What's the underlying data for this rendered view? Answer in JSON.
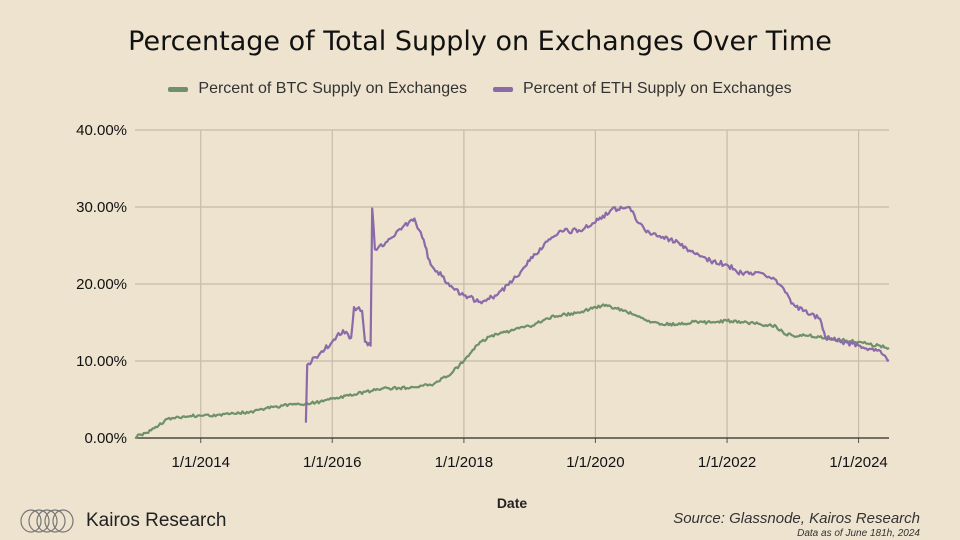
{
  "chart_data": {
    "type": "line",
    "title": "Percentage of Total Supply on Exchanges Over Time",
    "xlabel": "Date",
    "ylabel": "",
    "x_ticks": [
      "1/1/2014",
      "1/1/2016",
      "1/1/2018",
      "1/1/2020",
      "1/1/2022",
      "1/1/2024"
    ],
    "y_ticks": [
      "0.00%",
      "10.00%",
      "20.00%",
      "30.00%",
      "40.00%"
    ],
    "ylim": [
      0,
      40
    ],
    "xlim": [
      "2013-01-01",
      "2024-06-18"
    ],
    "grid": true,
    "legend_position": "top",
    "series": [
      {
        "name": "Percent of BTC Supply on Exchanges",
        "color": "#6e9167",
        "points": [
          [
            "2013-01-01",
            0.1
          ],
          [
            "2013-04-01",
            1.0
          ],
          [
            "2013-07-01",
            2.5
          ],
          [
            "2013-10-01",
            2.8
          ],
          [
            "2014-01-01",
            2.9
          ],
          [
            "2014-04-01",
            3.0
          ],
          [
            "2014-07-01",
            3.2
          ],
          [
            "2014-10-01",
            3.4
          ],
          [
            "2015-01-01",
            3.9
          ],
          [
            "2015-04-01",
            4.2
          ],
          [
            "2015-07-01",
            4.4
          ],
          [
            "2015-10-01",
            4.6
          ],
          [
            "2016-01-01",
            5.1
          ],
          [
            "2016-04-01",
            5.5
          ],
          [
            "2016-07-01",
            6.0
          ],
          [
            "2016-10-01",
            6.4
          ],
          [
            "2017-01-01",
            6.5
          ],
          [
            "2017-04-01",
            6.6
          ],
          [
            "2017-07-01",
            6.9
          ],
          [
            "2017-10-01",
            8.0
          ],
          [
            "2018-01-01",
            10.0
          ],
          [
            "2018-04-01",
            12.5
          ],
          [
            "2018-07-01",
            13.5
          ],
          [
            "2018-10-01",
            14.0
          ],
          [
            "2019-01-01",
            14.5
          ],
          [
            "2019-04-01",
            15.5
          ],
          [
            "2019-07-01",
            16.0
          ],
          [
            "2019-10-01",
            16.3
          ],
          [
            "2020-01-01",
            17.0
          ],
          [
            "2020-03-01",
            17.3
          ],
          [
            "2020-06-01",
            16.5
          ],
          [
            "2020-09-01",
            15.8
          ],
          [
            "2020-11-01",
            15.0
          ],
          [
            "2021-01-01",
            14.8
          ],
          [
            "2021-04-01",
            14.7
          ],
          [
            "2021-07-01",
            15.1
          ],
          [
            "2021-10-01",
            15.0
          ],
          [
            "2022-01-01",
            15.2
          ],
          [
            "2022-04-01",
            15.0
          ],
          [
            "2022-07-01",
            14.8
          ],
          [
            "2022-10-01",
            14.5
          ],
          [
            "2022-11-15",
            13.5
          ],
          [
            "2023-01-01",
            13.3
          ],
          [
            "2023-04-01",
            13.3
          ],
          [
            "2023-07-01",
            13.0
          ],
          [
            "2023-10-01",
            12.7
          ],
          [
            "2024-01-01",
            12.5
          ],
          [
            "2024-03-01",
            12.2
          ],
          [
            "2024-06-18",
            11.7
          ]
        ]
      },
      {
        "name": "Percent of ETH Supply on Exchanges",
        "color": "#8a6aa8",
        "points": [
          [
            "2015-08-08",
            2.0
          ],
          [
            "2015-08-15",
            9.5
          ],
          [
            "2015-10-01",
            10.5
          ],
          [
            "2016-01-01",
            12.5
          ],
          [
            "2016-03-01",
            14.0
          ],
          [
            "2016-04-15",
            13.0
          ],
          [
            "2016-05-01",
            17.0
          ],
          [
            "2016-06-15",
            16.5
          ],
          [
            "2016-07-01",
            12.5
          ],
          [
            "2016-08-01",
            12.0
          ],
          [
            "2016-08-10",
            29.8
          ],
          [
            "2016-08-25",
            24.5
          ],
          [
            "2016-11-01",
            25.5
          ],
          [
            "2017-01-01",
            27.0
          ],
          [
            "2017-03-01",
            28.0
          ],
          [
            "2017-04-01",
            28.5
          ],
          [
            "2017-05-15",
            26.0
          ],
          [
            "2017-07-01",
            22.5
          ],
          [
            "2017-09-01",
            21.0
          ],
          [
            "2017-11-01",
            19.5
          ],
          [
            "2018-01-01",
            18.5
          ],
          [
            "2018-04-01",
            17.7
          ],
          [
            "2018-07-01",
            18.5
          ],
          [
            "2018-10-01",
            20.5
          ],
          [
            "2019-01-01",
            23.0
          ],
          [
            "2019-04-01",
            25.5
          ],
          [
            "2019-07-01",
            26.8
          ],
          [
            "2019-10-01",
            27.0
          ],
          [
            "2020-01-01",
            28.0
          ],
          [
            "2020-04-01",
            29.7
          ],
          [
            "2020-07-01",
            30.0
          ],
          [
            "2020-10-01",
            27.0
          ],
          [
            "2021-01-01",
            26.0
          ],
          [
            "2021-04-01",
            25.5
          ],
          [
            "2021-07-01",
            24.0
          ],
          [
            "2021-10-01",
            23.0
          ],
          [
            "2022-01-01",
            22.5
          ],
          [
            "2022-04-01",
            21.2
          ],
          [
            "2022-07-01",
            21.5
          ],
          [
            "2022-10-01",
            20.5
          ],
          [
            "2023-01-01",
            17.5
          ],
          [
            "2023-04-01",
            16.0
          ],
          [
            "2023-06-01",
            15.5
          ],
          [
            "2023-07-01",
            13.0
          ],
          [
            "2023-10-01",
            12.5
          ],
          [
            "2024-01-01",
            12.0
          ],
          [
            "2024-03-01",
            11.6
          ],
          [
            "2024-05-01",
            11.3
          ],
          [
            "2024-06-18",
            10.1
          ]
        ]
      }
    ]
  },
  "footer": {
    "brand": "Kairos Research",
    "brand_icon": "kairos-logo-icon",
    "source": "Source: Glassnode, Kairos Research",
    "note": "Data as of June 181h, 2024"
  }
}
